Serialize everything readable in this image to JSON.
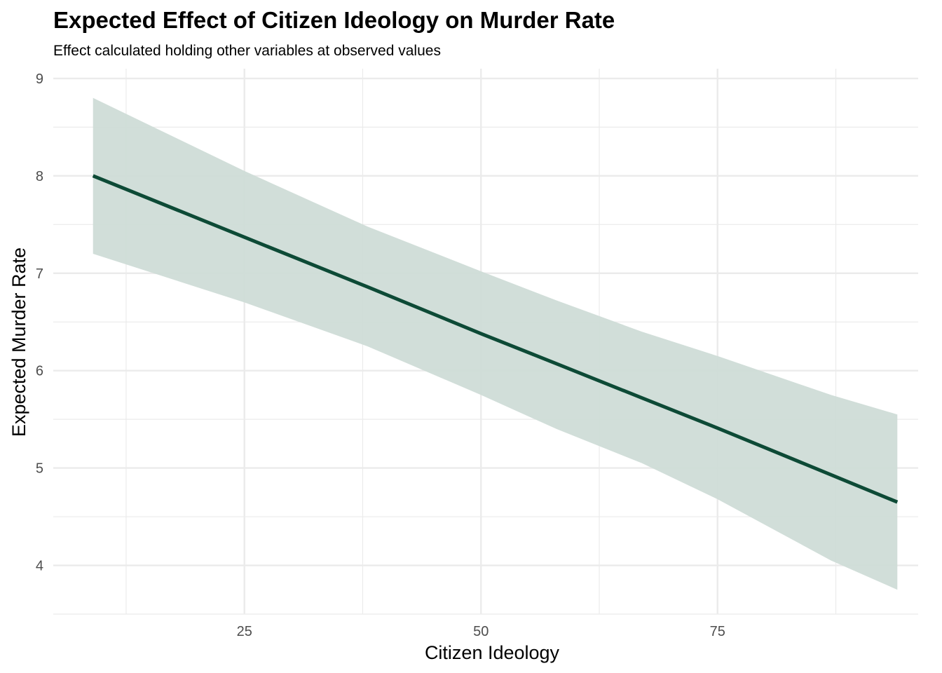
{
  "chart_data": {
    "type": "line",
    "title": "Expected Effect of Citizen Ideology on Murder Rate",
    "subtitle": "Effect calculated holding other variables at observed values",
    "xlabel": "Citizen Ideology",
    "ylabel": "Expected Murder Rate",
    "xlim": [
      4.8,
      96.2
    ],
    "ylim": [
      3.5,
      9.1
    ],
    "x_ticks": [
      25,
      50,
      75
    ],
    "x_minor_ticks": [
      12.5,
      37.5,
      62.5,
      87.5
    ],
    "y_ticks": [
      4,
      5,
      6,
      7,
      8,
      9
    ],
    "y_minor_ticks": [
      3.5,
      4.5,
      5.5,
      6.5,
      7.5,
      8.5
    ],
    "grid": true,
    "legend": "none",
    "colors": {
      "line": "#0d4a36",
      "ribbon": "#cfdcd7",
      "grid": "#ebebeb"
    },
    "series": [
      {
        "x": [
          9,
          25,
          38,
          50,
          58,
          67,
          75,
          87,
          94
        ],
        "y": [
          8.0,
          7.37,
          6.86,
          6.38,
          6.07,
          5.72,
          5.41,
          4.93,
          4.65
        ],
        "lower": [
          7.2,
          6.7,
          6.25,
          5.75,
          5.4,
          5.05,
          4.68,
          4.05,
          3.75
        ],
        "upper": [
          8.8,
          8.05,
          7.48,
          7.02,
          6.72,
          6.4,
          6.15,
          5.75,
          5.55
        ]
      }
    ]
  }
}
